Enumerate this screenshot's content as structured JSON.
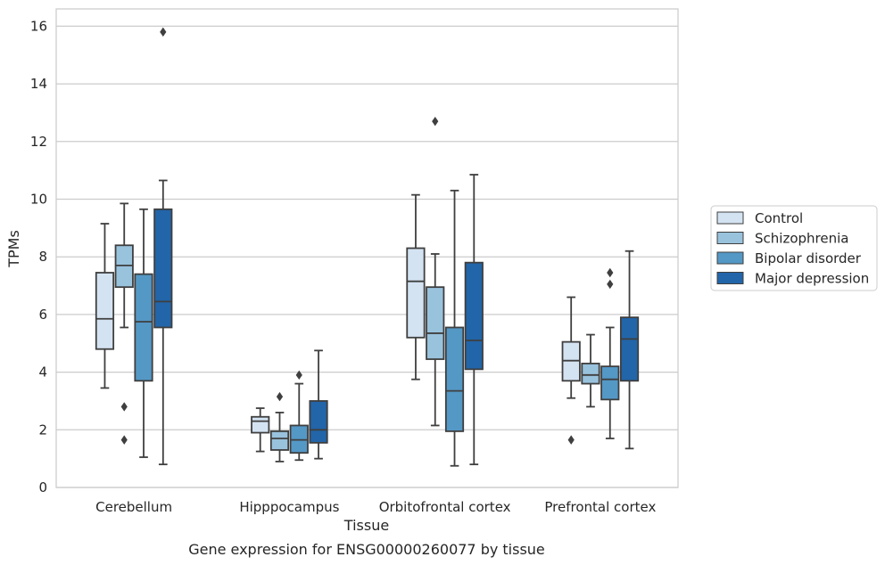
{
  "caption": "Gene expression for ENSG00000260077 by tissue",
  "chart_data": {
    "type": "box",
    "xlabel": "Tissue",
    "ylabel": "TPMs",
    "ylim": [
      0,
      16.6
    ],
    "yticks": [
      0,
      2,
      4,
      6,
      8,
      10,
      12,
      14,
      16
    ],
    "grid": "horizontal",
    "legend_position": "right",
    "categories": [
      "Cerebellum",
      "Hipppocampus",
      "Orbitofrontal cortex",
      "Prefrontal cortex"
    ],
    "series": [
      {
        "name": "Control",
        "color": "#d4e3f2",
        "boxes": [
          {
            "whisker_low": 3.45,
            "q1": 4.8,
            "median": 5.85,
            "q3": 7.45,
            "whisker_high": 9.15,
            "outliers": []
          },
          {
            "whisker_low": 1.25,
            "q1": 1.9,
            "median": 2.3,
            "q3": 2.45,
            "whisker_high": 2.75,
            "outliers": []
          },
          {
            "whisker_low": 3.75,
            "q1": 5.2,
            "median": 7.15,
            "q3": 8.3,
            "whisker_high": 10.15,
            "outliers": []
          },
          {
            "whisker_low": 3.1,
            "q1": 3.7,
            "median": 4.4,
            "q3": 5.05,
            "whisker_high": 6.6,
            "outliers": [
              1.65
            ]
          }
        ]
      },
      {
        "name": "Schizophrenia",
        "color": "#99c2dd",
        "boxes": [
          {
            "whisker_low": 5.55,
            "q1": 6.95,
            "median": 7.7,
            "q3": 8.4,
            "whisker_high": 9.85,
            "outliers": [
              2.8,
              1.65
            ]
          },
          {
            "whisker_low": 0.9,
            "q1": 1.3,
            "median": 1.7,
            "q3": 1.95,
            "whisker_high": 2.6,
            "outliers": [
              3.15
            ]
          },
          {
            "whisker_low": 2.15,
            "q1": 4.45,
            "median": 5.35,
            "q3": 6.95,
            "whisker_high": 8.1,
            "outliers": [
              12.7
            ]
          },
          {
            "whisker_low": 2.8,
            "q1": 3.6,
            "median": 3.9,
            "q3": 4.3,
            "whisker_high": 5.3,
            "outliers": []
          }
        ]
      },
      {
        "name": "Bipolar disorder",
        "color": "#5498c6",
        "boxes": [
          {
            "whisker_low": 1.05,
            "q1": 3.7,
            "median": 5.75,
            "q3": 7.4,
            "whisker_high": 9.65,
            "outliers": []
          },
          {
            "whisker_low": 0.95,
            "q1": 1.2,
            "median": 1.65,
            "q3": 2.15,
            "whisker_high": 3.6,
            "outliers": [
              3.9
            ]
          },
          {
            "whisker_low": 0.75,
            "q1": 1.95,
            "median": 3.35,
            "q3": 5.55,
            "whisker_high": 10.3,
            "outliers": []
          },
          {
            "whisker_low": 1.7,
            "q1": 3.05,
            "median": 3.75,
            "q3": 4.2,
            "whisker_high": 5.55,
            "outliers": [
              7.45,
              7.05
            ]
          }
        ]
      },
      {
        "name": "Major depression",
        "color": "#2265a9",
        "boxes": [
          {
            "whisker_low": 0.8,
            "q1": 5.55,
            "median": 6.45,
            "q3": 9.65,
            "whisker_high": 10.65,
            "outliers": [
              15.8
            ]
          },
          {
            "whisker_low": 1.0,
            "q1": 1.55,
            "median": 2.0,
            "q3": 3.0,
            "whisker_high": 4.75,
            "outliers": []
          },
          {
            "whisker_low": 0.8,
            "q1": 4.1,
            "median": 5.1,
            "q3": 7.8,
            "whisker_high": 10.85,
            "outliers": []
          },
          {
            "whisker_low": 1.35,
            "q1": 3.7,
            "median": 5.15,
            "q3": 5.9,
            "whisker_high": 8.2,
            "outliers": []
          }
        ]
      }
    ]
  }
}
